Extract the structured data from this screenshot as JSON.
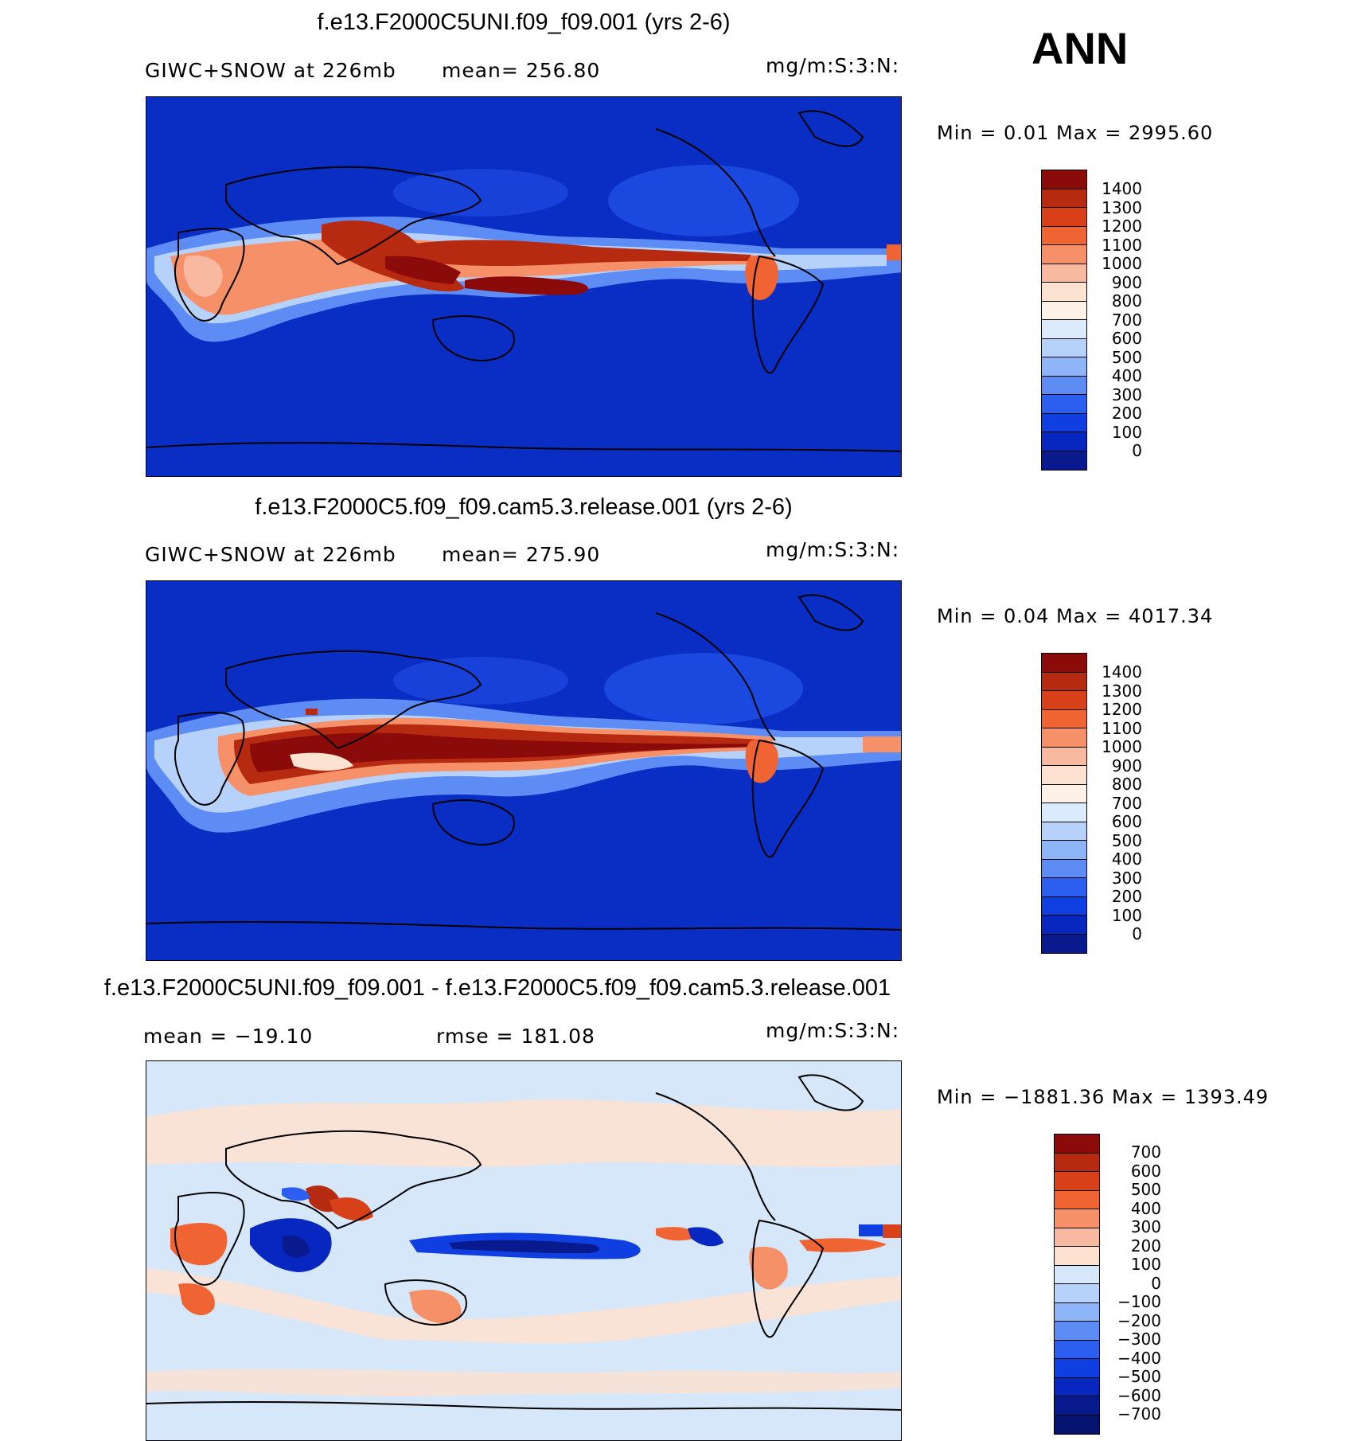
{
  "season": "ANN",
  "panels": [
    {
      "title": "f.e13.F2000C5UNI.f09_f09.001 (yrs 2-6)",
      "left_label": "GIWC+SNOW at 226mb",
      "mid_label": "mean= 256.80",
      "units": "mg/m:S:3:N:",
      "min_max": "Min =    0.01 Max = 2995.60",
      "levels": [
        "1400",
        "1300",
        "1200",
        "1100",
        "1000",
        "900",
        "800",
        "700",
        "600",
        "500",
        "400",
        "300",
        "200",
        "100",
        "0"
      ]
    },
    {
      "title": "f.e13.F2000C5.f09_f09.cam5.3.release.001 (yrs 2-6)",
      "left_label": "GIWC+SNOW at 226mb",
      "mid_label": "mean= 275.90",
      "units": "mg/m:S:3:N:",
      "min_max": "Min =    0.04 Max = 4017.34",
      "levels": [
        "1400",
        "1300",
        "1200",
        "1100",
        "1000",
        "900",
        "800",
        "700",
        "600",
        "500",
        "400",
        "300",
        "200",
        "100",
        "0"
      ]
    },
    {
      "title": "f.e13.F2000C5UNI.f09_f09.001 - f.e13.F2000C5.f09_f09.cam5.3.release.001",
      "left_label": "mean = −19.10",
      "mid_label": "rmse = 181.08",
      "units": "mg/m:S:3:N:",
      "min_max": "Min = −1881.36 Max = 1393.49",
      "levels": [
        "700",
        "600",
        "500",
        "400",
        "300",
        "200",
        "100",
        "0",
        "−100",
        "−200",
        "−300",
        "−400",
        "−500",
        "−600",
        "−700"
      ]
    }
  ],
  "colors": {
    "abs_scale": [
      "#8b0a0a",
      "#b52a10",
      "#d8401a",
      "#f06433",
      "#f59069",
      "#f9b9a0",
      "#fde2d2",
      "#fdf1e8",
      "#dcebfb",
      "#b7d2fa",
      "#8db5f7",
      "#5c8cf4",
      "#2c5ff0",
      "#0f3fe0",
      "#0827c0",
      "#081a8e"
    ],
    "diff_scale": [
      "#8b0a0a",
      "#b52a10",
      "#d8401a",
      "#f06433",
      "#f59069",
      "#f9b9a0",
      "#fde2d2",
      "#d6e7fa",
      "#b7d2fa",
      "#8db5f7",
      "#5c8cf4",
      "#2c5ff0",
      "#0f3fe0",
      "#0827c0",
      "#081a8e",
      "#061270"
    ]
  }
}
